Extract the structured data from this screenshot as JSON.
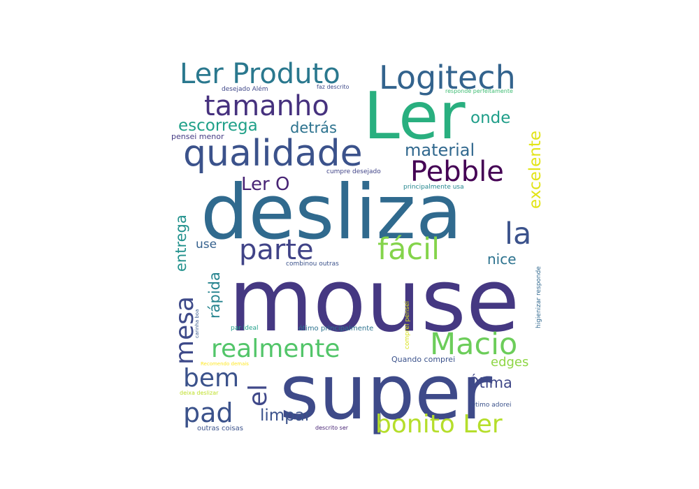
{
  "wordcloud": {
    "words": [
      {
        "text": "mouse",
        "color": "#453882"
      },
      {
        "text": "super",
        "color": "#3e4a89"
      },
      {
        "text": "desliza",
        "color": "#306a8e"
      },
      {
        "text": "Ler",
        "color": "#29af7f"
      },
      {
        "text": "qualidade",
        "color": "#3b528b"
      },
      {
        "text": "Logitech",
        "color": "#33638d"
      },
      {
        "text": "Ler Produto",
        "color": "#2a788e"
      },
      {
        "text": "tamanho",
        "color": "#46317e"
      },
      {
        "text": "Pebble",
        "color": "#440154"
      },
      {
        "text": "fácil",
        "color": "#84d44b"
      },
      {
        "text": "parte",
        "color": "#404387"
      },
      {
        "text": "Macio",
        "color": "#6ccd5a"
      },
      {
        "text": "realmente",
        "color": "#52c569"
      },
      {
        "text": "bonito Ler",
        "color": "#b5de2b"
      },
      {
        "text": "la",
        "color": "#3b528b"
      },
      {
        "text": "mesa",
        "color": "#3e4a89"
      },
      {
        "text": "el",
        "color": "#3f4889"
      },
      {
        "text": "bem",
        "color": "#3b528b"
      },
      {
        "text": "pad",
        "color": "#3b528b"
      },
      {
        "text": "Ler O",
        "color": "#482475"
      },
      {
        "text": "escorrega",
        "color": "#1fa088"
      },
      {
        "text": "detrás",
        "color": "#2c728e"
      },
      {
        "text": "onde",
        "color": "#1f9e89"
      },
      {
        "text": "material",
        "color": "#31688e"
      },
      {
        "text": "excelente",
        "color": "#e2e418"
      },
      {
        "text": "entrega",
        "color": "#21918c"
      },
      {
        "text": "rápida",
        "color": "#25838e"
      },
      {
        "text": "nice",
        "color": "#2c728e"
      },
      {
        "text": "use",
        "color": "#34608d"
      },
      {
        "text": "limpar",
        "color": "#3b528b"
      },
      {
        "text": "Ótima",
        "color": "#3f4788"
      },
      {
        "text": "edges",
        "color": "#8ed645"
      },
      {
        "text": "desejado Além",
        "color": "#3f4788"
      },
      {
        "text": "faz descrito",
        "color": "#3e4a89"
      },
      {
        "text": "responde perfeitamente",
        "color": "#3fbc73"
      },
      {
        "text": "pensei menor",
        "color": "#443a83"
      },
      {
        "text": "cumpre desejado",
        "color": "#404387"
      },
      {
        "text": "principalmente usa",
        "color": "#24878e"
      },
      {
        "text": "combinou outras",
        "color": "#3b528b"
      },
      {
        "text": "comprei pensei",
        "color": "#d8e219"
      },
      {
        "text": "higienizar responde",
        "color": "#31688e"
      },
      {
        "text": "carinha boa",
        "color": "#38598c"
      },
      {
        "text": "par ideal",
        "color": "#1f9e89"
      },
      {
        "text": "ótimo principalmente",
        "color": "#2c728e"
      },
      {
        "text": "Quando comprei",
        "color": "#3b528b"
      },
      {
        "text": "Recomendo demais",
        "color": "#fde725"
      },
      {
        "text": "deixa deslizar",
        "color": "#bddf26"
      },
      {
        "text": "Otimo adorei",
        "color": "#3b528b"
      },
      {
        "text": "outras coisas",
        "color": "#3b528b"
      },
      {
        "text": "descrito ser",
        "color": "#482475"
      }
    ]
  }
}
